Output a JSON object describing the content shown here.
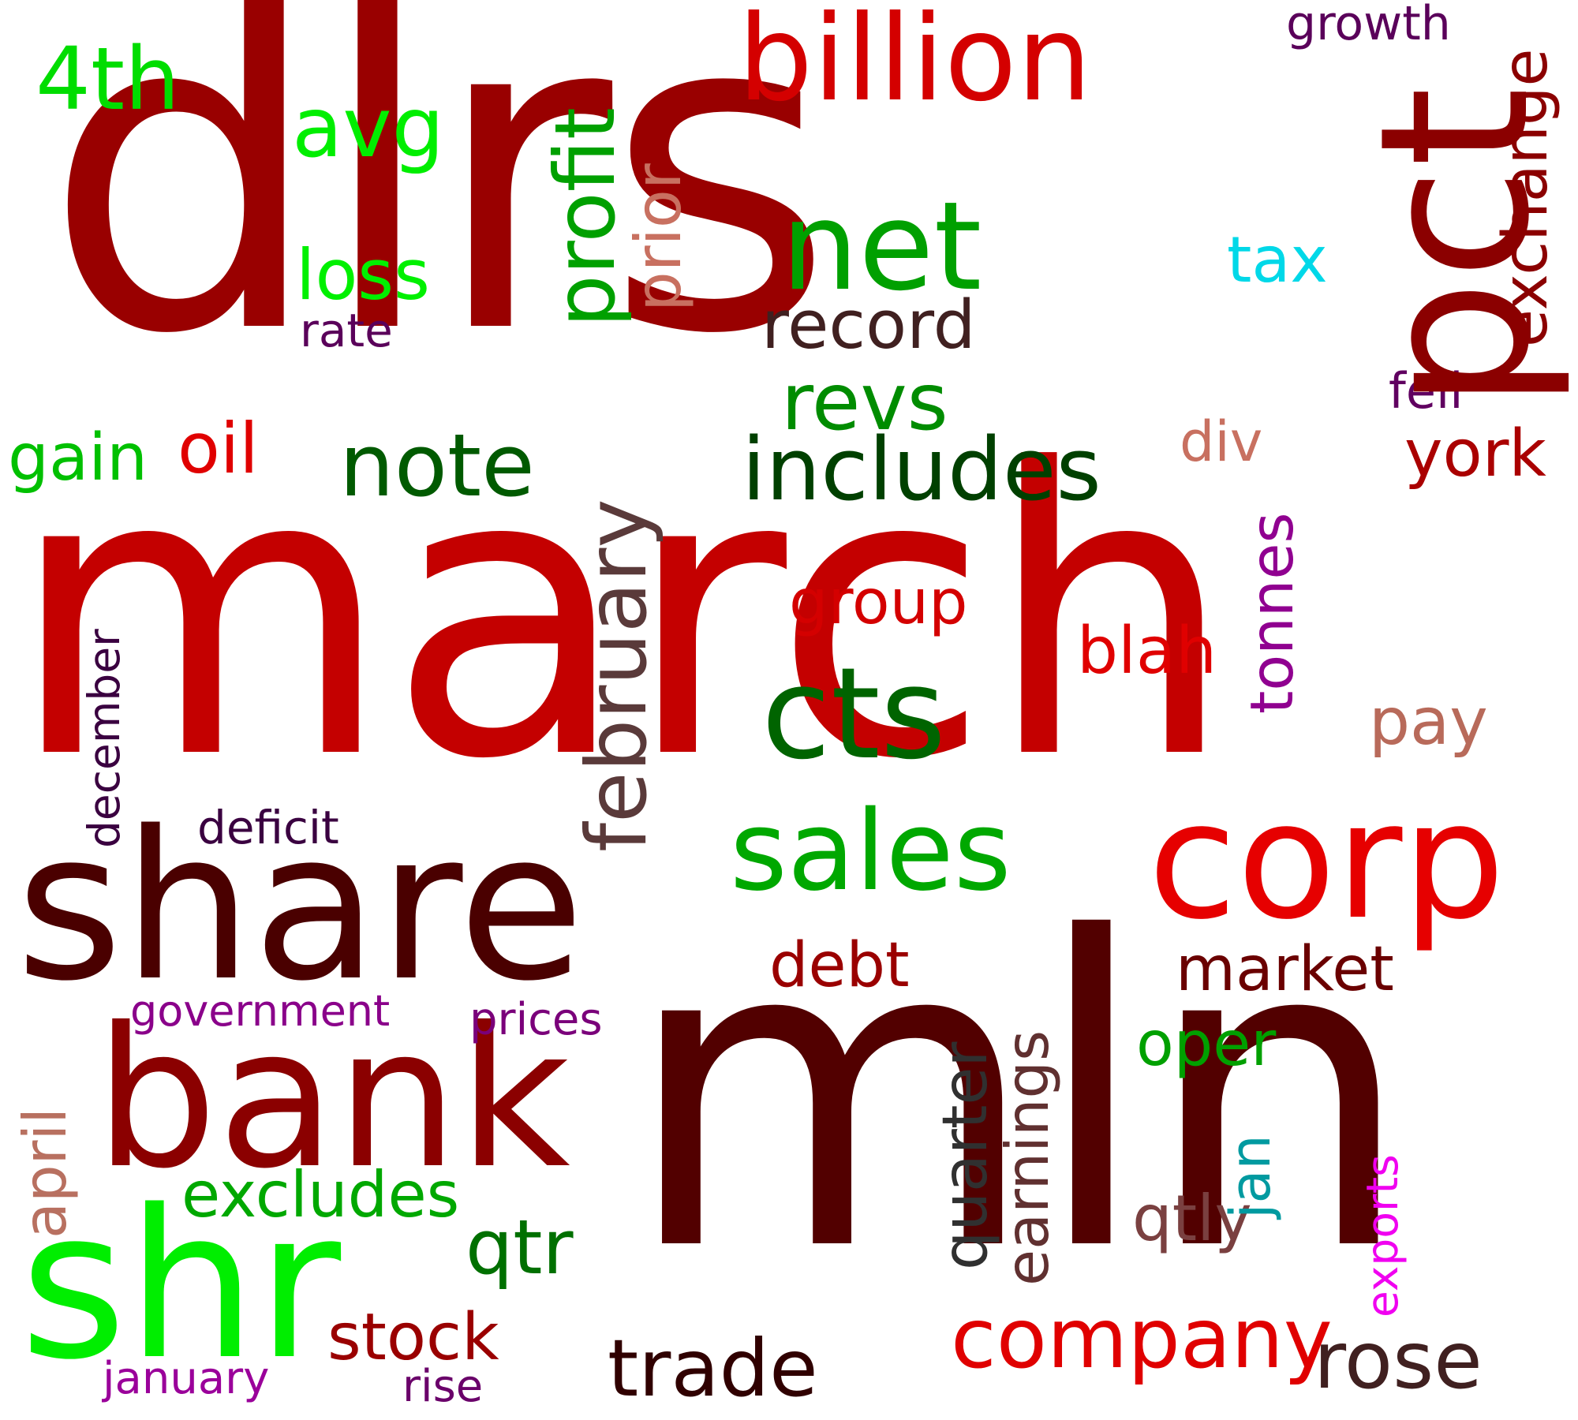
{
  "words": [
    {
      "text": "dlrs",
      "color": "#990000"
    },
    {
      "text": "march",
      "color": "#c40000"
    },
    {
      "text": "mln",
      "color": "#520000"
    },
    {
      "text": "share",
      "color": "#4a0000"
    },
    {
      "text": "pct",
      "color": "#8b0000"
    },
    {
      "text": "billion",
      "color": "#d40000"
    },
    {
      "text": "corp",
      "color": "#e60000"
    },
    {
      "text": "bank",
      "color": "#8b0000"
    },
    {
      "text": "shr",
      "color": "#00ee00"
    },
    {
      "text": "net",
      "color": "#00a000"
    },
    {
      "text": "cts",
      "color": "#006400"
    },
    {
      "text": "sales",
      "color": "#00a800"
    },
    {
      "text": "includes",
      "color": "#004000"
    },
    {
      "text": "note",
      "color": "#005a00"
    },
    {
      "text": "profit",
      "color": "#00a000"
    },
    {
      "text": "february",
      "color": "#5a3a3a"
    },
    {
      "text": "4th",
      "color": "#00dd00"
    },
    {
      "text": "avg",
      "color": "#00ee00"
    },
    {
      "text": "loss",
      "color": "#00f000"
    },
    {
      "text": "rate",
      "color": "#5a005a"
    },
    {
      "text": "prior",
      "color": "#c87060"
    },
    {
      "text": "record",
      "color": "#402020"
    },
    {
      "text": "revs",
      "color": "#008c00"
    },
    {
      "text": "tax",
      "color": "#00d8e8"
    },
    {
      "text": "exchange",
      "color": "#8b0000"
    },
    {
      "text": "growth",
      "color": "#5a005a"
    },
    {
      "text": "fell",
      "color": "#600060"
    },
    {
      "text": "gain",
      "color": "#00c000"
    },
    {
      "text": "oil",
      "color": "#e00000"
    },
    {
      "text": "div",
      "color": "#c87060"
    },
    {
      "text": "york",
      "color": "#aa0000"
    },
    {
      "text": "tonnes",
      "color": "#900090"
    },
    {
      "text": "group",
      "color": "#d40000"
    },
    {
      "text": "blah",
      "color": "#e00000"
    },
    {
      "text": "pay",
      "color": "#b86a5a"
    },
    {
      "text": "december",
      "color": "#3a0040"
    },
    {
      "text": "deficit",
      "color": "#3a0040"
    },
    {
      "text": "government",
      "color": "#8a008a"
    },
    {
      "text": "prices",
      "color": "#7a007a"
    },
    {
      "text": "debt",
      "color": "#9a0000"
    },
    {
      "text": "market",
      "color": "#6a0000"
    },
    {
      "text": "quarter",
      "color": "#303030"
    },
    {
      "text": "earnings",
      "color": "#603030"
    },
    {
      "text": "oper",
      "color": "#00a000"
    },
    {
      "text": "april",
      "color": "#b87060"
    },
    {
      "text": "excludes",
      "color": "#00a800"
    },
    {
      "text": "qtr",
      "color": "#007000"
    },
    {
      "text": "jan",
      "color": "#009aa0"
    },
    {
      "text": "qtly",
      "color": "#7a4040"
    },
    {
      "text": "exports",
      "color": "#f000f0"
    },
    {
      "text": "company",
      "color": "#e00000"
    },
    {
      "text": "rose",
      "color": "#402020"
    },
    {
      "text": "stock",
      "color": "#9a0000"
    },
    {
      "text": "trade",
      "color": "#300000"
    },
    {
      "text": "january",
      "color": "#9a009a"
    },
    {
      "text": "rise",
      "color": "#6a006a"
    }
  ]
}
